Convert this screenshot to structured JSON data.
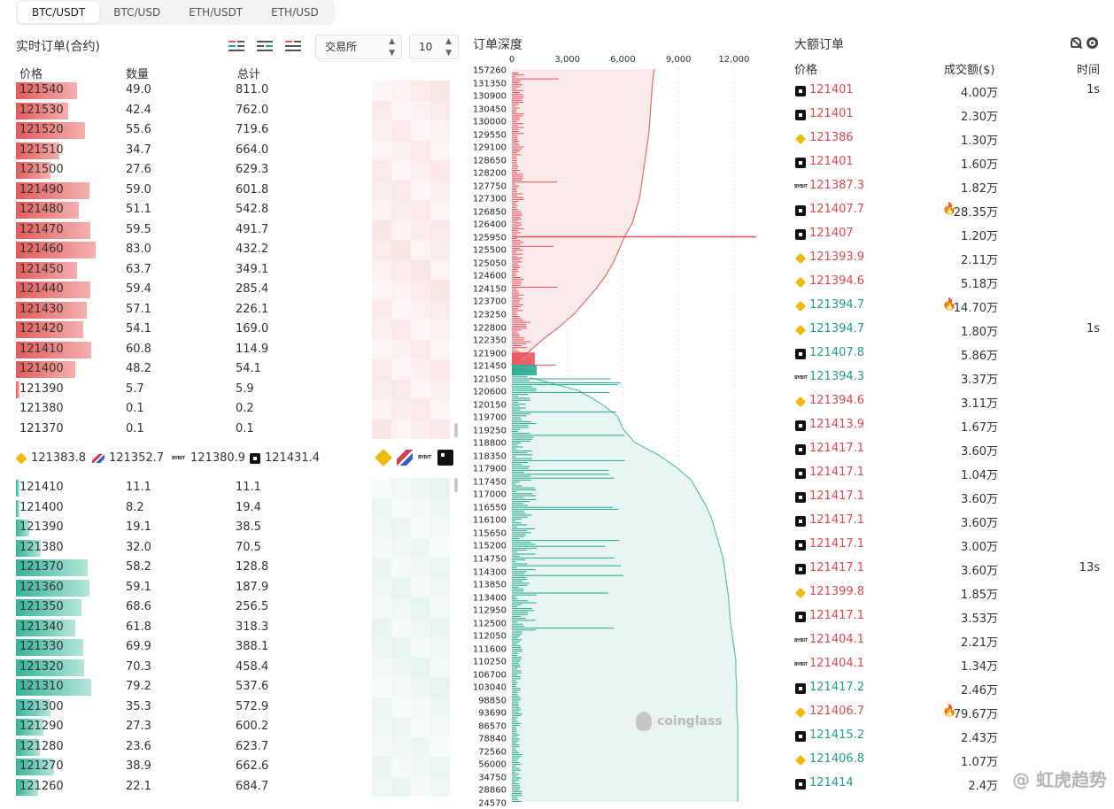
{
  "tabs": [
    "BTC/USDT",
    "BTC/USD",
    "ETH/USDT",
    "ETH/USD"
  ],
  "left": {
    "title": "实时订单(合约)",
    "exchange_select": "交易所",
    "depth_select": "10",
    "headers": {
      "price": "价格",
      "qty": "数量",
      "total": "总计"
    },
    "asks": [
      {
        "price": "121540",
        "qty": "49.0",
        "total": "811.0",
        "bar": 0.49
      },
      {
        "price": "121530",
        "qty": "42.4",
        "total": "762.0",
        "bar": 0.42
      },
      {
        "price": "121520",
        "qty": "55.6",
        "total": "719.6",
        "bar": 0.56
      },
      {
        "price": "121510",
        "qty": "34.7",
        "total": "664.0",
        "bar": 0.35
      },
      {
        "price": "121500",
        "qty": "27.6",
        "total": "629.3",
        "bar": 0.28
      },
      {
        "price": "121490",
        "qty": "59.0",
        "total": "601.8",
        "bar": 0.59
      },
      {
        "price": "121480",
        "qty": "51.1",
        "total": "542.8",
        "bar": 0.51
      },
      {
        "price": "121470",
        "qty": "59.5",
        "total": "491.7",
        "bar": 0.6
      },
      {
        "price": "121460",
        "qty": "83.0",
        "total": "432.2",
        "bar": 0.64
      },
      {
        "price": "121450",
        "qty": "63.7",
        "total": "349.1",
        "bar": 0.49
      },
      {
        "price": "121440",
        "qty": "59.4",
        "total": "285.4",
        "bar": 0.6
      },
      {
        "price": "121430",
        "qty": "57.1",
        "total": "226.1",
        "bar": 0.57
      },
      {
        "price": "121420",
        "qty": "54.1",
        "total": "169.0",
        "bar": 0.54
      },
      {
        "price": "121410",
        "qty": "60.8",
        "total": "114.9",
        "bar": 0.61
      },
      {
        "price": "121400",
        "qty": "48.2",
        "total": "54.1",
        "bar": 0.48
      },
      {
        "price": "121390",
        "qty": "5.7",
        "total": "5.9",
        "bar": 0.03
      },
      {
        "price": "121380",
        "qty": "0.1",
        "total": "0.2",
        "bar": 0
      },
      {
        "price": "121370",
        "qty": "0.1",
        "total": "0.1",
        "bar": 0
      }
    ],
    "mid_prices": [
      {
        "exchange": "binance-icon",
        "price": "121383.8"
      },
      {
        "exchange": "coinbase-icon",
        "price": "121352.7"
      },
      {
        "exchange": "bybit-icon",
        "price": "121380.9"
      },
      {
        "exchange": "okx-icon",
        "price": "121431.4"
      }
    ],
    "bids": [
      {
        "price": "121410",
        "qty": "11.1",
        "total": "11.1",
        "bar": 0.03
      },
      {
        "price": "121400",
        "qty": "8.2",
        "total": "19.4",
        "bar": 0.03
      },
      {
        "price": "121390",
        "qty": "19.1",
        "total": "38.5",
        "bar": 0.11
      },
      {
        "price": "121380",
        "qty": "32.0",
        "total": "70.5",
        "bar": 0.2
      },
      {
        "price": "121370",
        "qty": "58.2",
        "total": "128.8",
        "bar": 0.58
      },
      {
        "price": "121360",
        "qty": "59.1",
        "total": "187.9",
        "bar": 0.59
      },
      {
        "price": "121350",
        "qty": "68.6",
        "total": "256.5",
        "bar": 0.53
      },
      {
        "price": "121340",
        "qty": "61.8",
        "total": "318.3",
        "bar": 0.48
      },
      {
        "price": "121330",
        "qty": "69.9",
        "total": "388.1",
        "bar": 0.54
      },
      {
        "price": "121320",
        "qty": "70.3",
        "total": "458.4",
        "bar": 0.55
      },
      {
        "price": "121310",
        "qty": "79.2",
        "total": "537.6",
        "bar": 0.61
      },
      {
        "price": "121300",
        "qty": "35.3",
        "total": "572.9",
        "bar": 0.28
      },
      {
        "price": "121290",
        "qty": "27.3",
        "total": "600.2",
        "bar": 0.22
      },
      {
        "price": "121280",
        "qty": "23.6",
        "total": "623.7",
        "bar": 0.19
      },
      {
        "price": "121270",
        "qty": "38.9",
        "total": "662.6",
        "bar": 0.31
      },
      {
        "price": "121260",
        "qty": "22.1",
        "total": "684.7",
        "bar": 0.18
      }
    ]
  },
  "depth": {
    "title": "订单深度",
    "x_ticks": [
      "0",
      "3,000",
      "6,000",
      "9,000",
      "12,000"
    ],
    "y_ticks": [
      "157260",
      "131350",
      "130900",
      "130450",
      "130000",
      "129550",
      "129100",
      "128650",
      "128200",
      "127750",
      "127300",
      "126850",
      "126400",
      "125950",
      "125500",
      "125050",
      "124600",
      "124150",
      "123700",
      "123250",
      "122800",
      "122350",
      "121900",
      "121450",
      "121050",
      "120600",
      "120150",
      "119700",
      "119250",
      "118800",
      "118350",
      "117900",
      "117450",
      "117000",
      "116550",
      "116100",
      "115650",
      "115200",
      "114750",
      "114300",
      "113850",
      "113400",
      "112950",
      "112500",
      "112050",
      "111600",
      "110250",
      "106700",
      "103040",
      "98850",
      "93690",
      "86570",
      "78840",
      "72560",
      "56000",
      "34750",
      "28860",
      "24570"
    ],
    "watermark": "coinglass"
  },
  "chart_data": {
    "type": "area",
    "title": "订单深度",
    "xlabel": "",
    "ylabel": "",
    "xlim": [
      0,
      12000
    ],
    "series": [
      {
        "side": "ask",
        "price": [
          121450,
          121900,
          122350,
          122800,
          123250,
          123700,
          124150,
          124600,
          125050,
          125500,
          125950,
          126400,
          126850,
          127300,
          127750,
          128200,
          128650,
          129100,
          129550,
          130000,
          130450,
          130900,
          131350,
          157260
        ],
        "cumulative": [
          0,
          900,
          1700,
          2600,
          3400,
          4000,
          4600,
          5100,
          5500,
          5800,
          6100,
          6500,
          6700,
          6900,
          7000,
          7100,
          7200,
          7300,
          7400,
          7450,
          7500,
          7550,
          7600,
          7700
        ]
      },
      {
        "side": "bid",
        "price": [
          121050,
          120600,
          120150,
          119700,
          119250,
          118800,
          118350,
          117900,
          117450,
          117000,
          116550,
          116100,
          115650,
          115200,
          114750,
          114300,
          113850,
          113400,
          112950,
          112500,
          112050,
          111600,
          110250,
          106700,
          103040,
          98850,
          93690,
          86570,
          78840,
          72560,
          56000,
          34750,
          28860,
          24570
        ],
        "cumulative": [
          1000,
          3600,
          4800,
          5700,
          6000,
          6600,
          7900,
          8900,
          9700,
          10100,
          10500,
          10800,
          11000,
          11200,
          11400,
          11500,
          11600,
          11700,
          11750,
          11800,
          11900,
          12000,
          12100,
          12100,
          12150,
          12150,
          12150,
          12200,
          12200,
          12200,
          12200,
          12200,
          12200,
          12200
        ]
      }
    ]
  },
  "large": {
    "title": "大额订单",
    "headers": {
      "price": "价格",
      "amount": "成交额($)",
      "time": "时间"
    },
    "rows": [
      {
        "ex": "okx",
        "price": "121401",
        "side": "sell",
        "amount": "4.00万",
        "flame": false,
        "time": "1s"
      },
      {
        "ex": "okx",
        "price": "121401",
        "side": "sell",
        "amount": "2.30万",
        "flame": false,
        "time": ""
      },
      {
        "ex": "binance",
        "price": "121386",
        "side": "sell",
        "amount": "1.30万",
        "flame": false,
        "time": ""
      },
      {
        "ex": "okx",
        "price": "121401",
        "side": "sell",
        "amount": "1.60万",
        "flame": false,
        "time": ""
      },
      {
        "ex": "bybit",
        "price": "121387.3",
        "side": "sell",
        "amount": "1.82万",
        "flame": false,
        "time": ""
      },
      {
        "ex": "okx",
        "price": "121407.7",
        "side": "sell",
        "amount": "28.35万",
        "flame": true,
        "time": ""
      },
      {
        "ex": "okx",
        "price": "121407",
        "side": "sell",
        "amount": "1.20万",
        "flame": false,
        "time": ""
      },
      {
        "ex": "binance",
        "price": "121393.9",
        "side": "sell",
        "amount": "2.11万",
        "flame": false,
        "time": ""
      },
      {
        "ex": "binance",
        "price": "121394.6",
        "side": "sell",
        "amount": "5.18万",
        "flame": false,
        "time": ""
      },
      {
        "ex": "binance",
        "price": "121394.7",
        "side": "buy",
        "amount": "14.70万",
        "flame": true,
        "time": ""
      },
      {
        "ex": "binance",
        "price": "121394.7",
        "side": "buy",
        "amount": "1.80万",
        "flame": false,
        "time": "1s"
      },
      {
        "ex": "okx",
        "price": "121407.8",
        "side": "buy",
        "amount": "5.86万",
        "flame": false,
        "time": ""
      },
      {
        "ex": "bybit",
        "price": "121394.3",
        "side": "buy",
        "amount": "3.37万",
        "flame": false,
        "time": ""
      },
      {
        "ex": "binance",
        "price": "121394.6",
        "side": "sell",
        "amount": "3.11万",
        "flame": false,
        "time": ""
      },
      {
        "ex": "okx",
        "price": "121413.9",
        "side": "sell",
        "amount": "1.67万",
        "flame": false,
        "time": ""
      },
      {
        "ex": "okx",
        "price": "121417.1",
        "side": "sell",
        "amount": "3.60万",
        "flame": false,
        "time": ""
      },
      {
        "ex": "okx",
        "price": "121417.1",
        "side": "sell",
        "amount": "1.04万",
        "flame": false,
        "time": ""
      },
      {
        "ex": "okx",
        "price": "121417.1",
        "side": "sell",
        "amount": "3.60万",
        "flame": false,
        "time": ""
      },
      {
        "ex": "okx",
        "price": "121417.1",
        "side": "sell",
        "amount": "3.60万",
        "flame": false,
        "time": ""
      },
      {
        "ex": "okx",
        "price": "121417.1",
        "side": "sell",
        "amount": "3.00万",
        "flame": false,
        "time": ""
      },
      {
        "ex": "okx",
        "price": "121417.1",
        "side": "sell",
        "amount": "3.60万",
        "flame": false,
        "time": "13s"
      },
      {
        "ex": "binance",
        "price": "121399.8",
        "side": "sell",
        "amount": "1.85万",
        "flame": false,
        "time": ""
      },
      {
        "ex": "okx",
        "price": "121417.1",
        "side": "sell",
        "amount": "3.53万",
        "flame": false,
        "time": ""
      },
      {
        "ex": "bybit",
        "price": "121404.1",
        "side": "sell",
        "amount": "2.21万",
        "flame": false,
        "time": ""
      },
      {
        "ex": "bybit",
        "price": "121404.1",
        "side": "sell",
        "amount": "1.34万",
        "flame": false,
        "time": ""
      },
      {
        "ex": "okx",
        "price": "121417.2",
        "side": "buy",
        "amount": "2.46万",
        "flame": false,
        "time": ""
      },
      {
        "ex": "binance",
        "price": "121406.7",
        "side": "sell",
        "amount": "79.67万",
        "flame": true,
        "time": ""
      },
      {
        "ex": "okx",
        "price": "121415.2",
        "side": "buy",
        "amount": "2.43万",
        "flame": false,
        "time": ""
      },
      {
        "ex": "binance",
        "price": "121406.8",
        "side": "buy",
        "amount": "1.07万",
        "flame": false,
        "time": ""
      },
      {
        "ex": "okx",
        "price": "121414",
        "side": "buy",
        "amount": "2.4万",
        "flame": false,
        "time": ""
      }
    ]
  },
  "footer_watermark": "@ 虹虎趋势",
  "colors": {
    "ask": "#e35b5b",
    "bid": "#27a58e",
    "sell_text": "#e0484f",
    "buy_text": "#1f9f88"
  }
}
